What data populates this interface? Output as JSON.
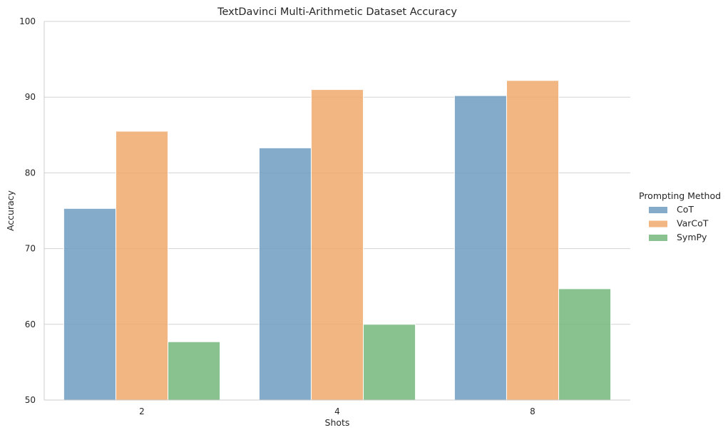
{
  "chart_data": {
    "type": "bar",
    "title": "TextDavinci Multi-Arithmetic Dataset Accuracy",
    "xlabel": "Shots",
    "ylabel": "Accuracy",
    "categories": [
      "2",
      "4",
      "8"
    ],
    "ylim": [
      50,
      100
    ],
    "yticks": [
      50,
      60,
      70,
      80,
      90,
      100
    ],
    "grid": "horizontal",
    "legend": {
      "title": "Prompting Method",
      "placement": "right"
    },
    "series": [
      {
        "name": "CoT",
        "color": "#6f9dc1",
        "values": [
          75.3,
          83.3,
          90.2
        ]
      },
      {
        "name": "VarCoT",
        "color": "#efa96c",
        "values": [
          85.5,
          91.0,
          92.2
        ]
      },
      {
        "name": "SymPy",
        "color": "#74b77a",
        "values": [
          57.7,
          60.0,
          64.7
        ]
      }
    ]
  }
}
